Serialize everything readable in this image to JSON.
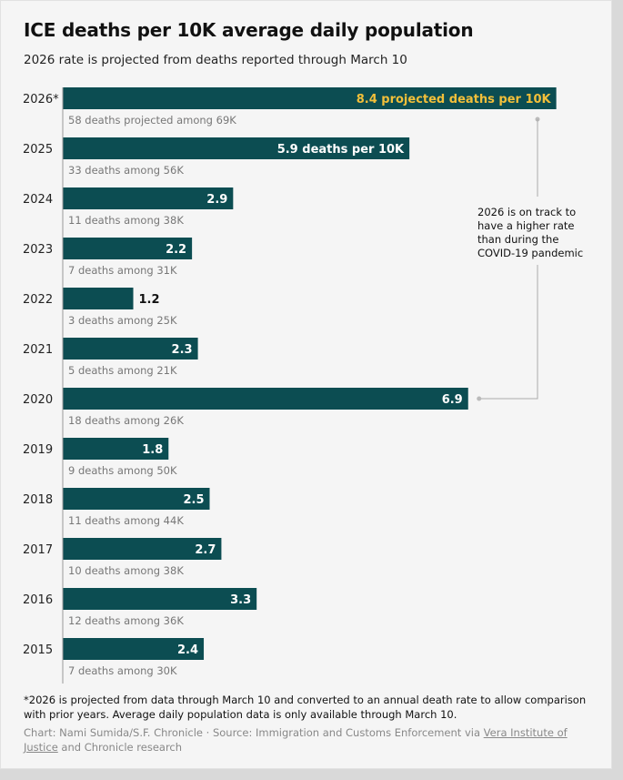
{
  "header": {
    "title": "ICE deaths per 10K average daily population",
    "subtitle": "2026 rate is projected from deaths reported through March 10"
  },
  "chart_data": {
    "type": "bar",
    "orientation": "horizontal",
    "title": "ICE deaths per 10K average daily population",
    "subtitle": "2026 rate is projected from deaths reported through March 10",
    "xlim": [
      0,
      10
    ],
    "rows": [
      {
        "year": "2026*",
        "value": 8.4,
        "label": "8.4 projected deaths per 10K",
        "sub": "58 deaths projected among 69K",
        "highlight": true
      },
      {
        "year": "2025",
        "value": 5.9,
        "label": "5.9 deaths per 10K",
        "sub": "33 deaths among 56K"
      },
      {
        "year": "2024",
        "value": 2.9,
        "label": "2.9",
        "sub": "11 deaths among 38K"
      },
      {
        "year": "2023",
        "value": 2.2,
        "label": "2.2",
        "sub": "7 deaths among 31K"
      },
      {
        "year": "2022",
        "value": 1.2,
        "label": "1.2",
        "sub": "3 deaths among 25K"
      },
      {
        "year": "2021",
        "value": 2.3,
        "label": "2.3",
        "sub": "5 deaths among 21K"
      },
      {
        "year": "2020",
        "value": 6.9,
        "label": "6.9",
        "sub": "18 deaths among 26K"
      },
      {
        "year": "2019",
        "value": 1.8,
        "label": "1.8",
        "sub": "9 deaths among 50K"
      },
      {
        "year": "2018",
        "value": 2.5,
        "label": "2.5",
        "sub": "11 deaths among 44K"
      },
      {
        "year": "2017",
        "value": 2.7,
        "label": "2.7",
        "sub": "10 deaths among 38K"
      },
      {
        "year": "2016",
        "value": 3.3,
        "label": "3.3",
        "sub": "12 deaths among 36K"
      },
      {
        "year": "2015",
        "value": 2.4,
        "label": "2.4",
        "sub": "7 deaths among 30K"
      }
    ],
    "annotation": {
      "text": "2026 is on track to have a higher rate than during the COVID-19 pandemic",
      "connects": [
        "2026*",
        "2020"
      ]
    }
  },
  "footer": {
    "note": "*2026 is projected from data through March 10 and converted to an annual death rate to allow comparison with prior years. Average daily population data is only available through March 10.",
    "credit_prefix": "Chart: Nami Sumida/S.F. Chronicle · Source: Immigration and Customs Enforcement via ",
    "credit_link": "Vera Institute of Justice",
    "credit_suffix": " and Chronicle research"
  },
  "colors": {
    "bar": "#0c4d52",
    "highlight_label": "#f2bf3a",
    "background": "#f5f5f5"
  }
}
